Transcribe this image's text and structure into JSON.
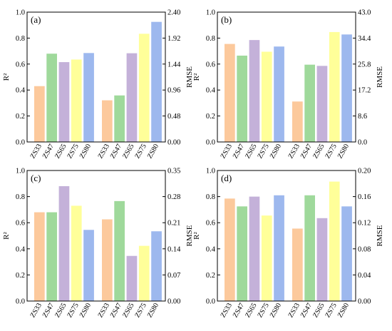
{
  "chart_data": [
    {
      "type": "bar",
      "panel_label": "(a)",
      "ylabel_left": "R²",
      "ylabel_right": "RMSE",
      "left_ylim": [
        0,
        1.0
      ],
      "left_ticks": [
        "0.0",
        "0.2",
        "0.4",
        "0.6",
        "0.8",
        "1.0"
      ],
      "right_ylim": [
        0,
        2.4
      ],
      "right_ticks": [
        "0.00",
        "0.48",
        "0.96",
        "1.44",
        "1.92",
        "2.40"
      ],
      "categories": [
        "ZS33",
        "ZS47",
        "ZS65",
        "ZS75",
        "ZS80"
      ],
      "r2_values": [
        0.43,
        0.68,
        0.615,
        0.635,
        0.685
      ],
      "rmse_values": [
        0.77,
        0.86,
        1.64,
        2.0,
        2.22
      ],
      "colors": [
        "#fcc99c",
        "#9fd99b",
        "#c4b1d9",
        "#ffff99",
        "#9db8ee"
      ]
    },
    {
      "type": "bar",
      "panel_label": "(b)",
      "ylabel_left": "R²",
      "ylabel_right": "RMSE",
      "left_ylim": [
        0,
        1.0
      ],
      "left_ticks": [
        "0.0",
        "0.2",
        "0.4",
        "0.6",
        "0.8",
        "1.0"
      ],
      "right_ylim": [
        0,
        43.0
      ],
      "right_ticks": [
        "0.0",
        "8.6",
        "17.2",
        "25.8",
        "34.4",
        "43.0"
      ],
      "categories": [
        "ZS33",
        "ZS47",
        "ZS65",
        "ZS75",
        "ZS80"
      ],
      "r2_values": [
        0.755,
        0.665,
        0.785,
        0.695,
        0.735
      ],
      "rmse_values": [
        13.4,
        25.6,
        25.2,
        36.4,
        35.6
      ],
      "colors": [
        "#fcc99c",
        "#9fd99b",
        "#c4b1d9",
        "#ffff99",
        "#9db8ee"
      ]
    },
    {
      "type": "bar",
      "panel_label": "(c)",
      "ylabel_left": "R²",
      "ylabel_right": "RMSE",
      "left_ylim": [
        0,
        1.0
      ],
      "left_ticks": [
        "0.0",
        "0.2",
        "0.4",
        "0.6",
        "0.8",
        "1.0"
      ],
      "right_ylim": [
        0,
        0.35
      ],
      "right_ticks": [
        "0.00",
        "0.07",
        "0.14",
        "0.21",
        "0.28",
        "0.35"
      ],
      "categories": [
        "ZS33",
        "ZS47",
        "ZS65",
        "ZS75",
        "ZS80"
      ],
      "r2_values": [
        0.68,
        0.68,
        0.88,
        0.73,
        0.545
      ],
      "rmse_values": [
        0.219,
        0.268,
        0.121,
        0.148,
        0.187
      ],
      "colors": [
        "#fcc99c",
        "#9fd99b",
        "#c4b1d9",
        "#ffff99",
        "#9db8ee"
      ]
    },
    {
      "type": "bar",
      "panel_label": "(d)",
      "ylabel_left": "R²",
      "ylabel_right": "RMSE",
      "left_ylim": [
        0,
        1.0
      ],
      "left_ticks": [
        "0.0",
        "0.2",
        "0.4",
        "0.6",
        "0.8",
        "1.0"
      ],
      "right_ylim": [
        0,
        0.2
      ],
      "right_ticks": [
        "0.00",
        "0.04",
        "0.08",
        "0.12",
        "0.16",
        "0.20"
      ],
      "categories": [
        "ZS33",
        "ZS47",
        "ZS65",
        "ZS75",
        "ZS80"
      ],
      "r2_values": [
        0.785,
        0.725,
        0.8,
        0.655,
        0.81
      ],
      "rmse_values": [
        0.111,
        0.162,
        0.127,
        0.183,
        0.145
      ],
      "colors": [
        "#fcc99c",
        "#9fd99b",
        "#c4b1d9",
        "#ffff99",
        "#9db8ee"
      ]
    }
  ]
}
